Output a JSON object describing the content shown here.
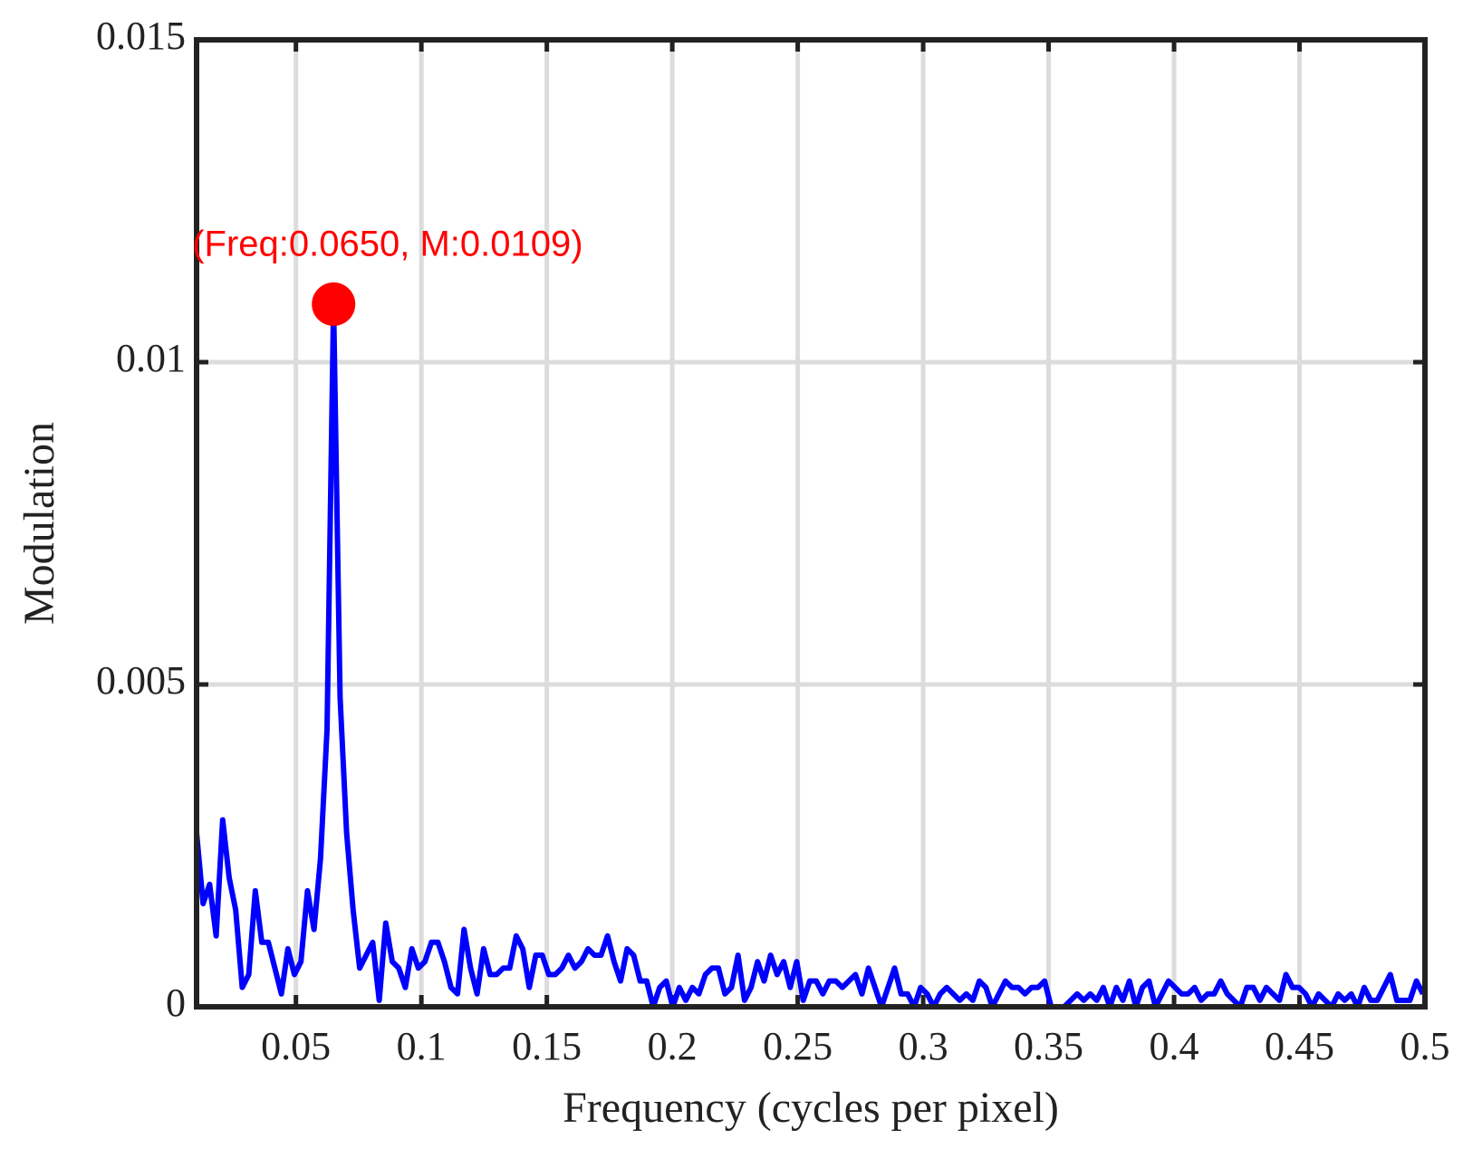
{
  "chart_data": {
    "type": "line",
    "xlabel": "Frequency (cycles per pixel)",
    "ylabel": "Modulation",
    "xlim": [
      0.0104,
      0.5
    ],
    "ylim": [
      0,
      0.015
    ],
    "xticks": [
      0.05,
      0.1,
      0.15,
      0.2,
      0.25,
      0.3,
      0.35,
      0.4,
      0.45,
      0.5
    ],
    "yticks": [
      0,
      0.005,
      0.01,
      0.015
    ],
    "grid": true,
    "x": [
      0.0104,
      0.013,
      0.0156,
      0.0182,
      0.0208,
      0.0234,
      0.026,
      0.0286,
      0.0312,
      0.0338,
      0.0364,
      0.039,
      0.0416,
      0.0442,
      0.0468,
      0.0494,
      0.052,
      0.0546,
      0.0572,
      0.0598,
      0.0624,
      0.065,
      0.0676,
      0.0702,
      0.0728,
      0.0754,
      0.078,
      0.0806,
      0.0832,
      0.0858,
      0.0884,
      0.091,
      0.0936,
      0.0962,
      0.0988,
      0.1014,
      0.104,
      0.1066,
      0.1092,
      0.1118,
      0.1144,
      0.117,
      0.1196,
      0.1222,
      0.1248,
      0.1274,
      0.13,
      0.1326,
      0.1352,
      0.1378,
      0.1404,
      0.143,
      0.1456,
      0.1482,
      0.1508,
      0.1534,
      0.156,
      0.1586,
      0.1612,
      0.1638,
      0.1664,
      0.169,
      0.1716,
      0.1742,
      0.1768,
      0.1794,
      0.182,
      0.1846,
      0.1872,
      0.1898,
      0.1924,
      0.195,
      0.1976,
      0.2002,
      0.2028,
      0.2054,
      0.208,
      0.2106,
      0.2132,
      0.2158,
      0.2184,
      0.221,
      0.2236,
      0.2262,
      0.2288,
      0.2314,
      0.234,
      0.2366,
      0.2392,
      0.2418,
      0.2444,
      0.247,
      0.2496,
      0.2522,
      0.2548,
      0.2574,
      0.26,
      0.2626,
      0.2652,
      0.2678,
      0.2704,
      0.273,
      0.2756,
      0.2782,
      0.2808,
      0.2834,
      0.286,
      0.2886,
      0.2912,
      0.2938,
      0.2964,
      0.299,
      0.3016,
      0.3042,
      0.3068,
      0.3094,
      0.312,
      0.3146,
      0.3172,
      0.3198,
      0.3224,
      0.325,
      0.3276,
      0.3302,
      0.3328,
      0.3354,
      0.338,
      0.3406,
      0.3432,
      0.3458,
      0.3484,
      0.351,
      0.3536,
      0.3562,
      0.3588,
      0.3614,
      0.364,
      0.3666,
      0.3692,
      0.3718,
      0.3744,
      0.377,
      0.3796,
      0.3822,
      0.3848,
      0.3874,
      0.39,
      0.3926,
      0.3952,
      0.3978,
      0.4004,
      0.403,
      0.4056,
      0.4082,
      0.4108,
      0.4134,
      0.416,
      0.4186,
      0.4212,
      0.4238,
      0.4264,
      0.429,
      0.4316,
      0.4342,
      0.4368,
      0.4394,
      0.442,
      0.4446,
      0.4472,
      0.4498,
      0.4524,
      0.455,
      0.4576,
      0.4602,
      0.4628,
      0.4654,
      0.468,
      0.4706,
      0.4732,
      0.4758,
      0.4784,
      0.481,
      0.4836,
      0.4862,
      0.4888,
      0.4914,
      0.494,
      0.4966,
      0.4992
    ],
    "series": [
      {
        "color": "#0000ff",
        "values": [
          0.0027,
          0.0016,
          0.0019,
          0.0011,
          0.0029,
          0.002,
          0.0015,
          0.0003,
          0.0005,
          0.0018,
          0.001,
          0.001,
          0.0006,
          0.0002,
          0.0009,
          0.0005,
          0.0007,
          0.0018,
          0.0012,
          0.0023,
          0.0043,
          0.0109,
          0.0048,
          0.0027,
          0.0015,
          0.0006,
          0.0008,
          0.001,
          0.0001,
          0.0013,
          0.0007,
          0.0006,
          0.0003,
          0.0009,
          0.0006,
          0.0007,
          0.001,
          0.001,
          0.0007,
          0.0003,
          0.0002,
          0.0012,
          0.0006,
          0.0002,
          0.0009,
          0.0005,
          0.0005,
          0.0006,
          0.0006,
          0.0011,
          0.0009,
          0.0003,
          0.0008,
          0.0008,
          0.0005,
          0.0005,
          0.0006,
          0.0008,
          0.0006,
          0.0007,
          0.0009,
          0.0008,
          0.0008,
          0.0011,
          0.0007,
          0.0004,
          0.0009,
          0.0008,
          0.0004,
          0.0004,
          0,
          0.0003,
          0.0004,
          0,
          0.0003,
          0.0001,
          0.0003,
          0.0002,
          0.0005,
          0.0006,
          0.0006,
          0.0002,
          0.0003,
          0.0008,
          0.0001,
          0.0003,
          0.0007,
          0.0004,
          0.0008,
          0.0005,
          0.0007,
          0.0003,
          0.0007,
          0.0001,
          0.0004,
          0.0004,
          0.0002,
          0.0004,
          0.0004,
          0.0003,
          0.0004,
          0.0005,
          0.0002,
          0.0006,
          0.0003,
          0,
          0.0003,
          0.0006,
          0.0002,
          0.0002,
          0,
          0.0003,
          0.0002,
          0,
          0.0002,
          0.0003,
          0.0002,
          0.0001,
          0.0002,
          0.0001,
          0.0004,
          0.0003,
          0,
          0.0002,
          0.0004,
          0.0003,
          0.0003,
          0.0002,
          0.0003,
          0.0003,
          0.0004,
          0,
          0,
          0,
          0.0001,
          0.0002,
          0.0001,
          0.0002,
          0.0001,
          0.0003,
          0,
          0.0003,
          0.0001,
          0.0004,
          0,
          0.0003,
          0.0004,
          0,
          0.0002,
          0.0004,
          0.0003,
          0.0002,
          0.0002,
          0.0003,
          0.0001,
          0.0002,
          0.0002,
          0.0004,
          0.0002,
          0.0001,
          0,
          0.0003,
          0.0003,
          0.0001,
          0.0003,
          0.0002,
          0.0001,
          0.0005,
          0.0003,
          0.0003,
          0.0002,
          0,
          0.0002,
          0.0001,
          0,
          0.0002,
          0.0001,
          0.0002,
          0,
          0.0003,
          0.0001,
          0.0001,
          0.0003,
          0.0005,
          0.0001,
          0.0001,
          0.0001,
          0.0004,
          0.0002
        ]
      }
    ],
    "annotation": {
      "text": "(Freq:0.0650, M:0.0109)",
      "x": 0.065,
      "y": 0.0109,
      "color": "#ff0000"
    }
  }
}
